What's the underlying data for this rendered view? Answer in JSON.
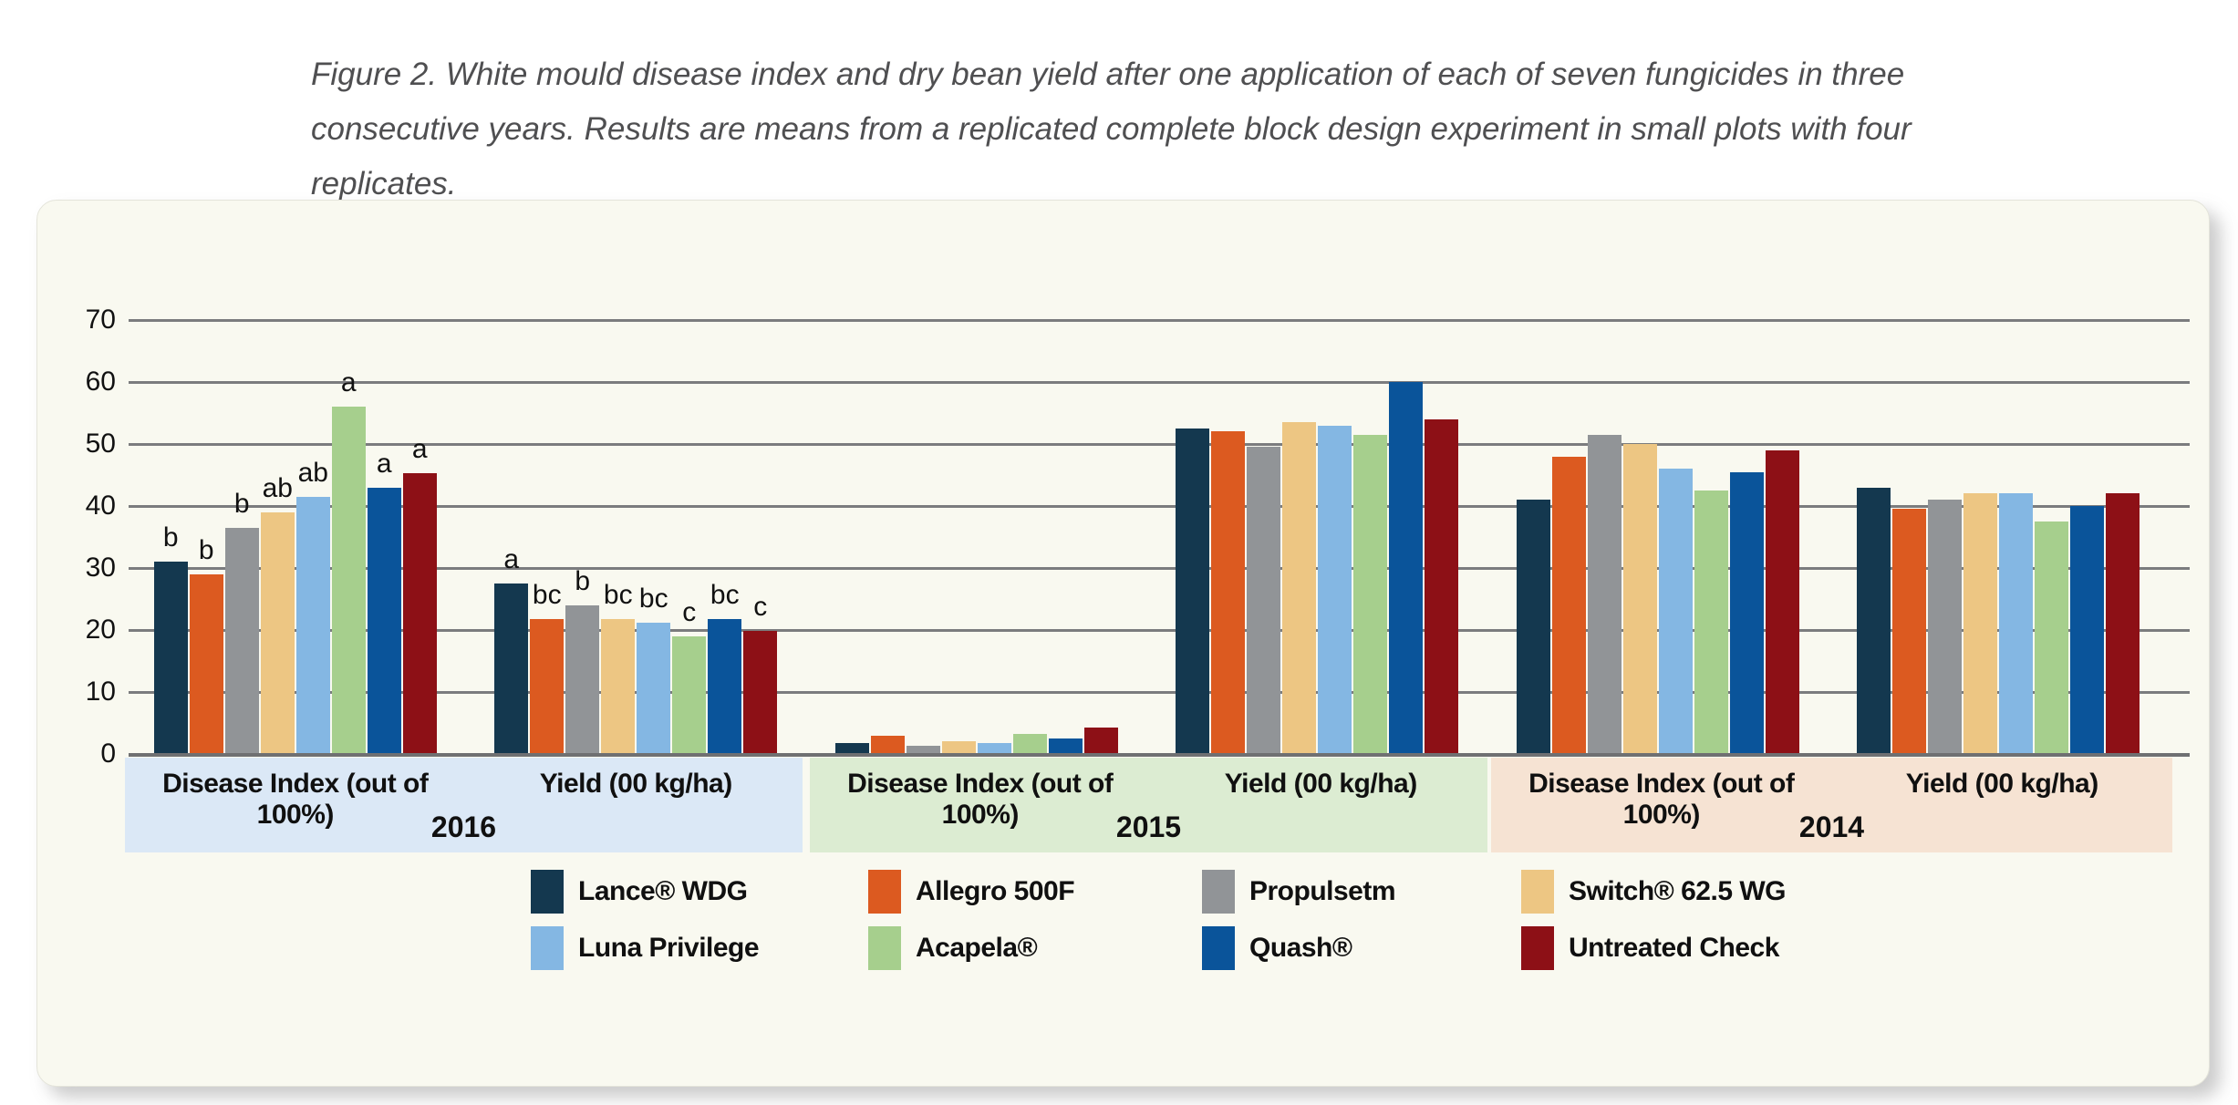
{
  "caption": "Figure 2. White mould disease index and dry bean yield after one application of each of seven fungicides in three consecutive years. Results are means from a replicated complete block design experiment in small plots with four replicates.",
  "panel": {
    "background": "#f9f9f0"
  },
  "chart_data": {
    "type": "bar",
    "title": "",
    "xlabel": "",
    "ylabel": "",
    "ylim": [
      0,
      70
    ],
    "yticks": [
      0,
      10,
      20,
      30,
      40,
      50,
      60,
      70
    ],
    "grid": true,
    "legend_position": "bottom",
    "grid_color": "#7b7c7e",
    "years": [
      {
        "label": "2016",
        "band_color": "#dbe8f6"
      },
      {
        "label": "2015",
        "band_color": "#dcecd2"
      },
      {
        "label": "2014",
        "band_color": "#f6e3d3"
      }
    ],
    "groups": [
      {
        "measure": "Disease Index (out of 100%)",
        "year": "2016",
        "letters": [
          "b",
          "b",
          "b",
          "ab",
          "ab",
          "a",
          "a",
          "a"
        ]
      },
      {
        "measure": "Yield (00 kg/ha)",
        "year": "2016",
        "letters": [
          "a",
          "bc",
          "b",
          "bc",
          "bc",
          "c",
          "bc",
          "c"
        ]
      },
      {
        "measure": "Disease Index (out of 100%)",
        "year": "2015",
        "letters": null
      },
      {
        "measure": "Yield (00 kg/ha)",
        "year": "2015",
        "letters": null
      },
      {
        "measure": "Disease Index (out of 100%)",
        "year": "2014",
        "letters": null
      },
      {
        "measure": "Yield (00 kg/ha)",
        "year": "2014",
        "letters": null
      }
    ],
    "group_order_note": "values arrays are ordered to match groups array",
    "series": [
      {
        "name": "Lance® WDG",
        "color": "#14384f",
        "values": [
          31,
          27.5,
          1.8,
          52.5,
          41,
          43
        ]
      },
      {
        "name": "Allegro 500F",
        "color": "#dc5a20",
        "values": [
          29,
          21.7,
          3,
          52,
          48,
          39.5
        ]
      },
      {
        "name": "Propulsetm",
        "color": "#919497",
        "values": [
          36.5,
          24,
          1.3,
          49.5,
          51.5,
          41
        ]
      },
      {
        "name": "Switch® 62.5 WG",
        "color": "#edc683",
        "values": [
          39,
          21.7,
          2,
          53.5,
          50,
          42
        ]
      },
      {
        "name": "Luna Privilege",
        "color": "#84b7e3",
        "values": [
          41.5,
          21.2,
          1.8,
          53,
          46,
          42
        ]
      },
      {
        "name": "Acapela®",
        "color": "#a6cf8d",
        "values": [
          56,
          19,
          3.3,
          51.5,
          42.5,
          37.5
        ]
      },
      {
        "name": "Quash®",
        "color": "#0a549a",
        "values": [
          43,
          21.8,
          2.5,
          60,
          45.5,
          40
        ]
      },
      {
        "name": "Untreated Check",
        "color": "#8d1016",
        "values": [
          45.3,
          19.8,
          4.3,
          54,
          49,
          42
        ]
      }
    ]
  }
}
